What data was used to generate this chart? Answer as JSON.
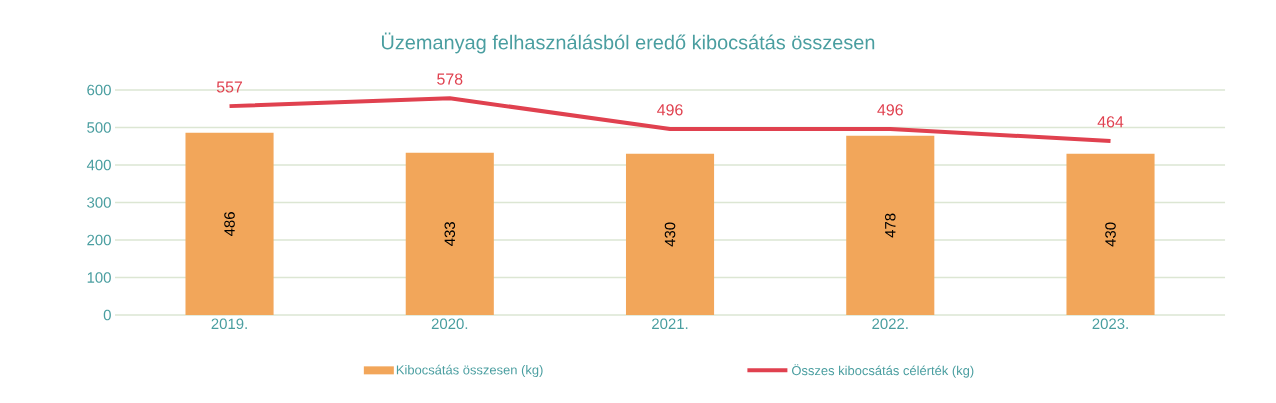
{
  "chart_data": {
    "type": "bar",
    "title": "Üzemanyag felhasználásból eredő kibocsátás összesen",
    "categories": [
      "2019.",
      "2020.",
      "2021.",
      "2022.",
      "2023."
    ],
    "series": [
      {
        "name": "Kibocsátás összesen (kg)",
        "color": "#f2a65a",
        "values": [
          486,
          433,
          430,
          478,
          430
        ]
      },
      {
        "name": "Összes kibocsátás célérték (kg)",
        "type": "line",
        "color": "#e0414f",
        "values": [
          557,
          578,
          496,
          496,
          464
        ]
      }
    ],
    "ylim": [
      0,
      600
    ],
    "yticks": [
      0,
      100,
      200,
      300,
      400,
      500,
      600
    ],
    "grid": "y",
    "legend": "bottom",
    "data_labels": true
  }
}
